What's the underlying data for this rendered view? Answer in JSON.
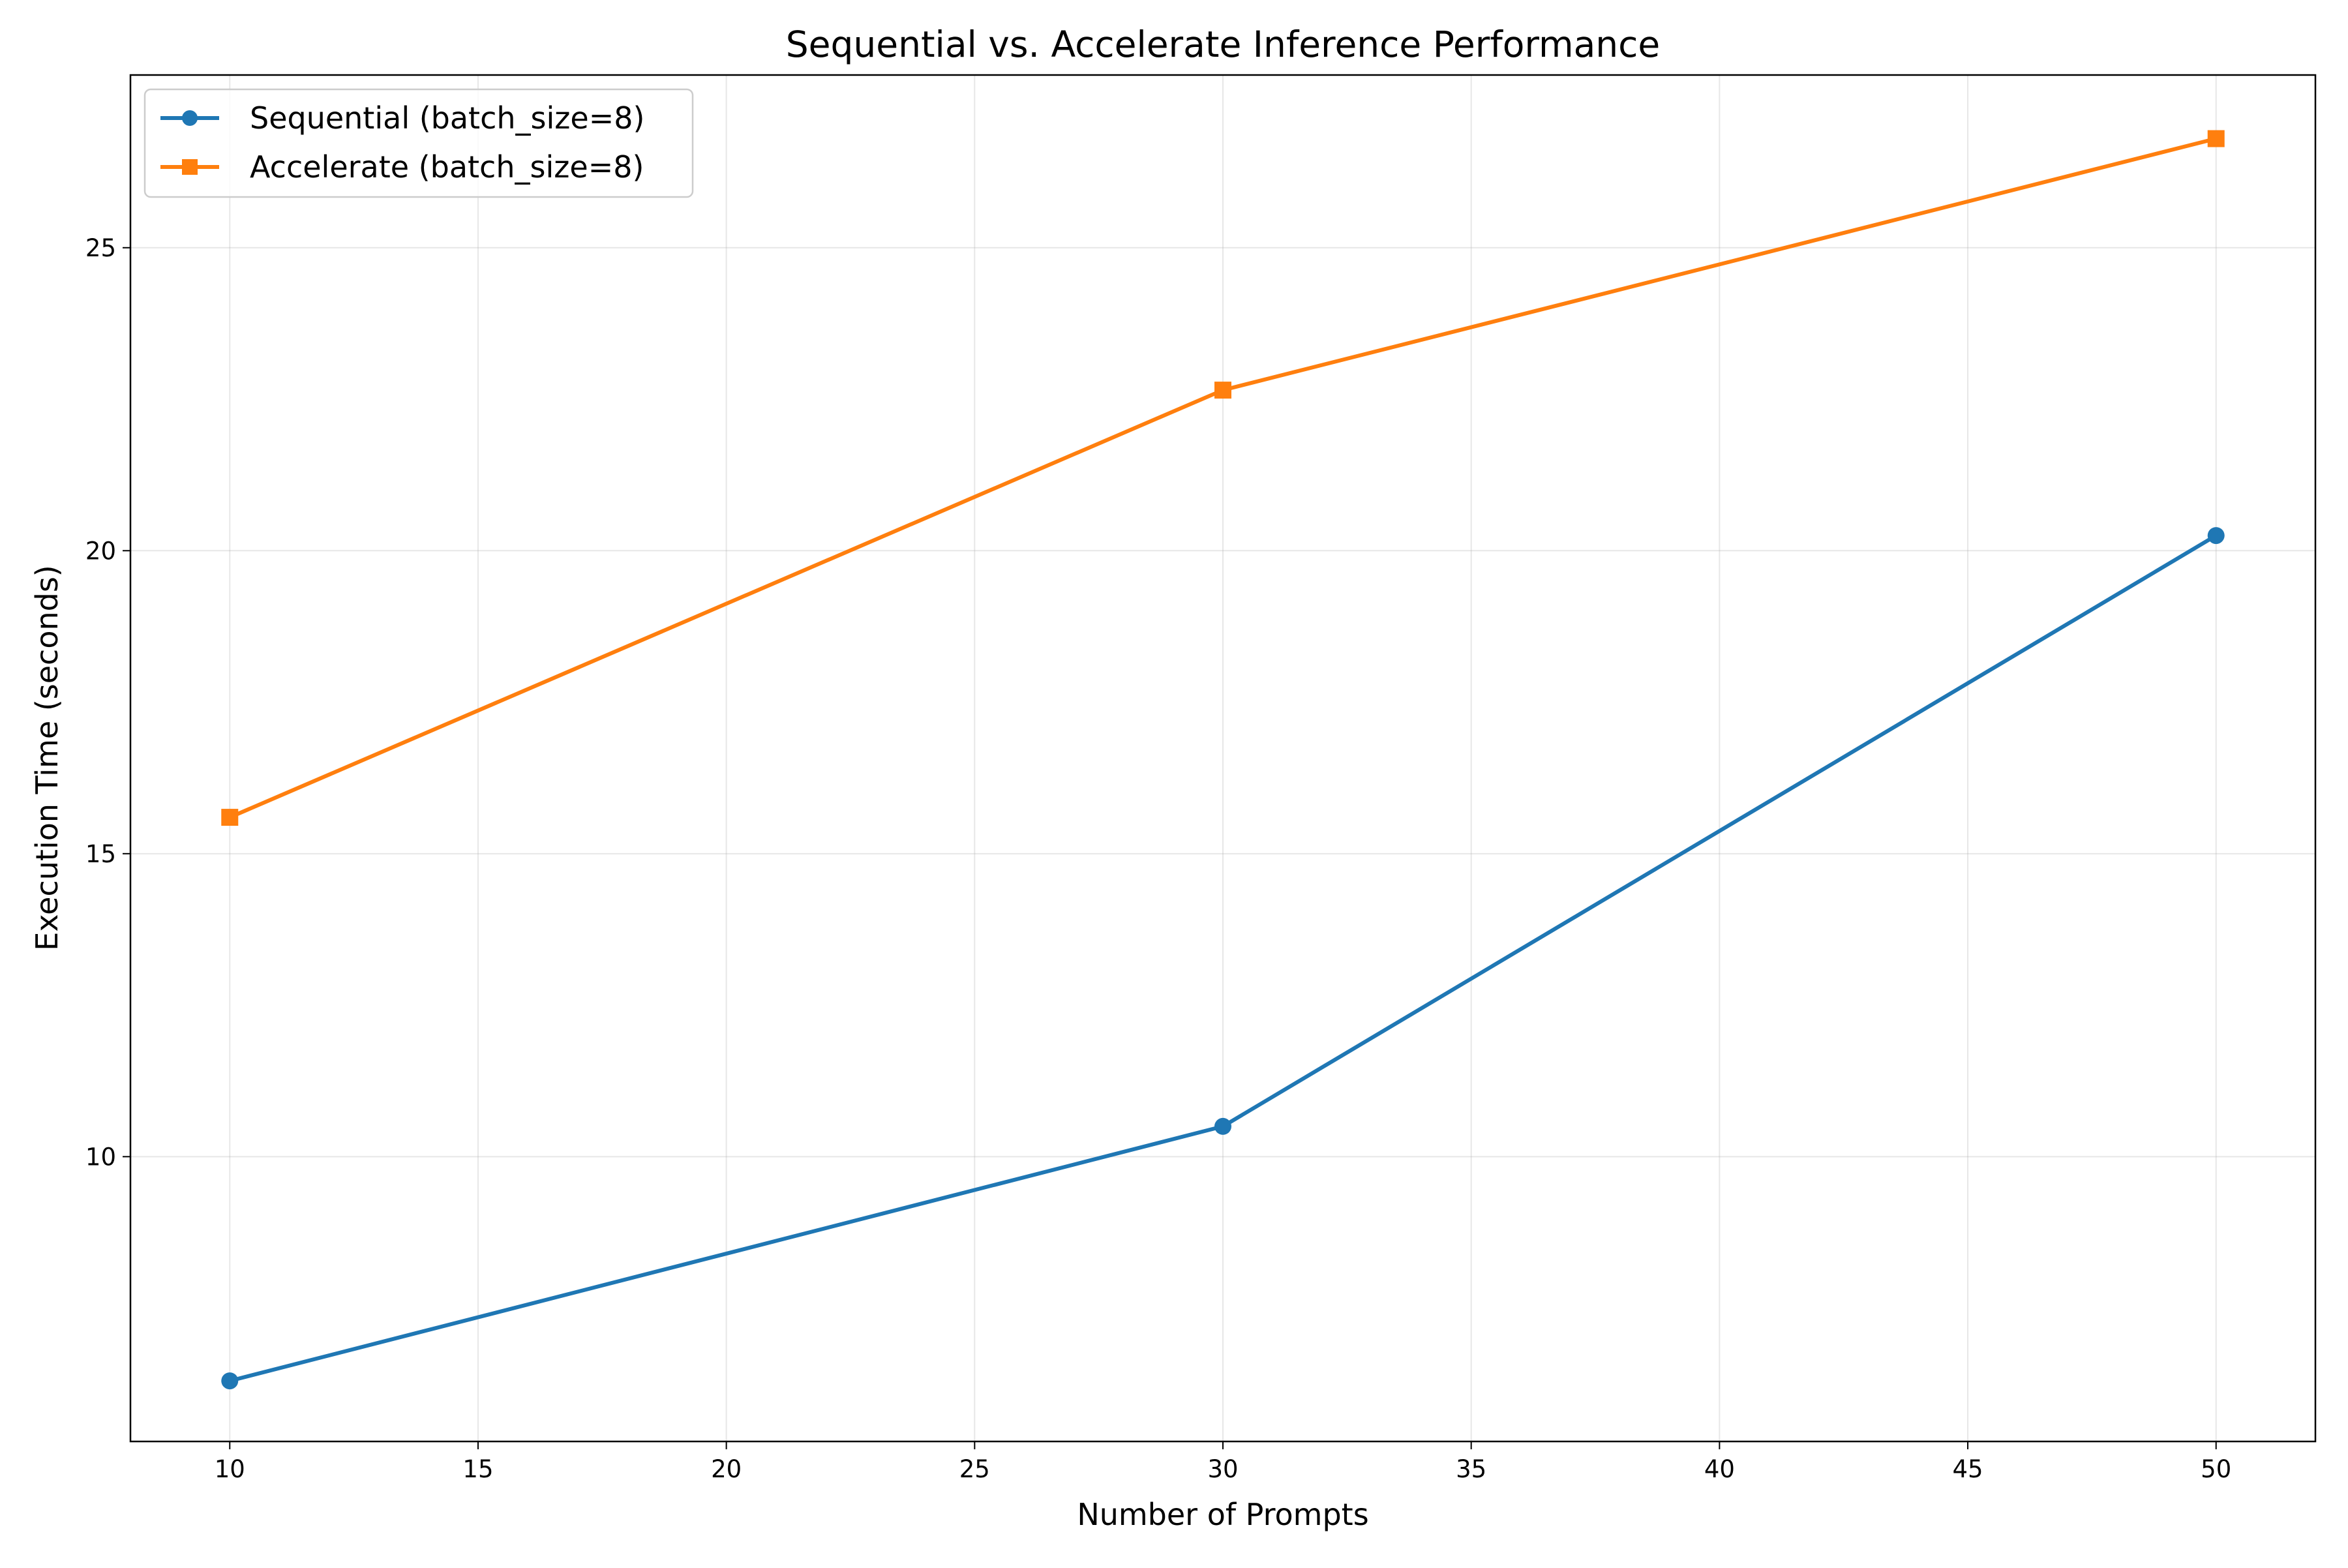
{
  "chart_data": {
    "type": "line",
    "title": "Sequential vs. Accelerate Inference Performance",
    "xlabel": "Number of Prompts",
    "ylabel": "Execution Time (seconds)",
    "x": [
      10,
      30,
      50
    ],
    "series": [
      {
        "name": "Sequential (batch_size=8)",
        "values": [
          6.3,
          10.5,
          20.25
        ],
        "color": "#1f77b4",
        "marker": "circle"
      },
      {
        "name": "Accelerate (batch_size=8)",
        "values": [
          15.6,
          22.65,
          26.8
        ],
        "color": "#ff7f0e",
        "marker": "square"
      }
    ],
    "xlim": [
      8,
      52
    ],
    "ylim": [
      5.3,
      27.85
    ],
    "xticks": [
      10,
      15,
      20,
      25,
      30,
      35,
      40,
      45,
      50
    ],
    "yticks": [
      10,
      15,
      20,
      25
    ],
    "grid": true,
    "legend_position": "top-left"
  }
}
